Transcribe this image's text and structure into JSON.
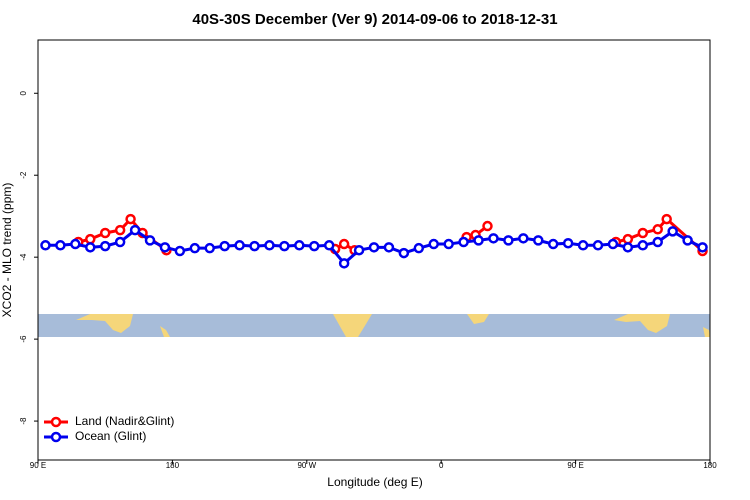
{
  "chart_data": {
    "type": "line",
    "title": "40S-30S December (Ver 9)   2014-09-06 to 2018-12-31",
    "x_label": "Longitude (deg E)",
    "y_label": "XCO2 - MLO trend (ppm)",
    "xlim": [
      90,
      540
    ],
    "ylim": [
      -8.95,
      1.3
    ],
    "xticks": [
      {
        "value": 90,
        "label": "90 E"
      },
      180,
      {
        "value": 270,
        "label": "90 W"
      },
      {
        "value": 360,
        "label": "0"
      },
      {
        "value": 450,
        "label": "90 E"
      },
      {
        "value": 540,
        "label": "180"
      }
    ],
    "yticks": [
      0,
      -2,
      -4,
      -6,
      -8
    ],
    "legend": "bottom-left",
    "series": [
      {
        "name": "Land (Nadir&Glint)",
        "color": "#ff0000",
        "x": [
          117,
          125,
          135,
          145,
          152,
          160,
          176,
          230,
          289,
          295,
          302,
          340,
          377,
          383,
          391,
          440,
          477,
          485,
          495,
          505,
          511,
          535
        ],
        "values": [
          -3.63,
          -3.56,
          -3.41,
          -3.34,
          -3.07,
          -3.41,
          -3.83,
          null,
          -3.8,
          -3.68,
          -3.83,
          null,
          -3.51,
          -3.46,
          -3.24,
          null,
          -3.63,
          -3.56,
          -3.41,
          -3.32,
          -3.07,
          -3.85
        ]
      },
      {
        "name": "Ocean (Glint)",
        "color": "#0000ee",
        "x": [
          95,
          105,
          115,
          125,
          135,
          145,
          155,
          165,
          175,
          185,
          195,
          205,
          215,
          225,
          235,
          245,
          255,
          265,
          275,
          285,
          295,
          305,
          315,
          325,
          335,
          345,
          355,
          365,
          375,
          385,
          395,
          405,
          415,
          425,
          435,
          445,
          455,
          465,
          475,
          485,
          495,
          505,
          515,
          525,
          535
        ],
        "values": [
          -3.71,
          -3.71,
          -3.68,
          -3.76,
          -3.73,
          -3.63,
          -3.34,
          -3.59,
          -3.76,
          -3.85,
          -3.78,
          -3.78,
          -3.73,
          -3.71,
          -3.73,
          -3.71,
          -3.73,
          -3.71,
          -3.73,
          -3.71,
          -4.15,
          -3.83,
          -3.76,
          -3.76,
          -3.9,
          -3.78,
          -3.68,
          -3.68,
          -3.63,
          -3.59,
          -3.54,
          -3.59,
          -3.54,
          -3.59,
          -3.68,
          -3.66,
          -3.71,
          -3.71,
          -3.68,
          -3.76,
          -3.71,
          -3.63,
          -3.37,
          -3.59,
          -3.76
        ]
      }
    ]
  }
}
